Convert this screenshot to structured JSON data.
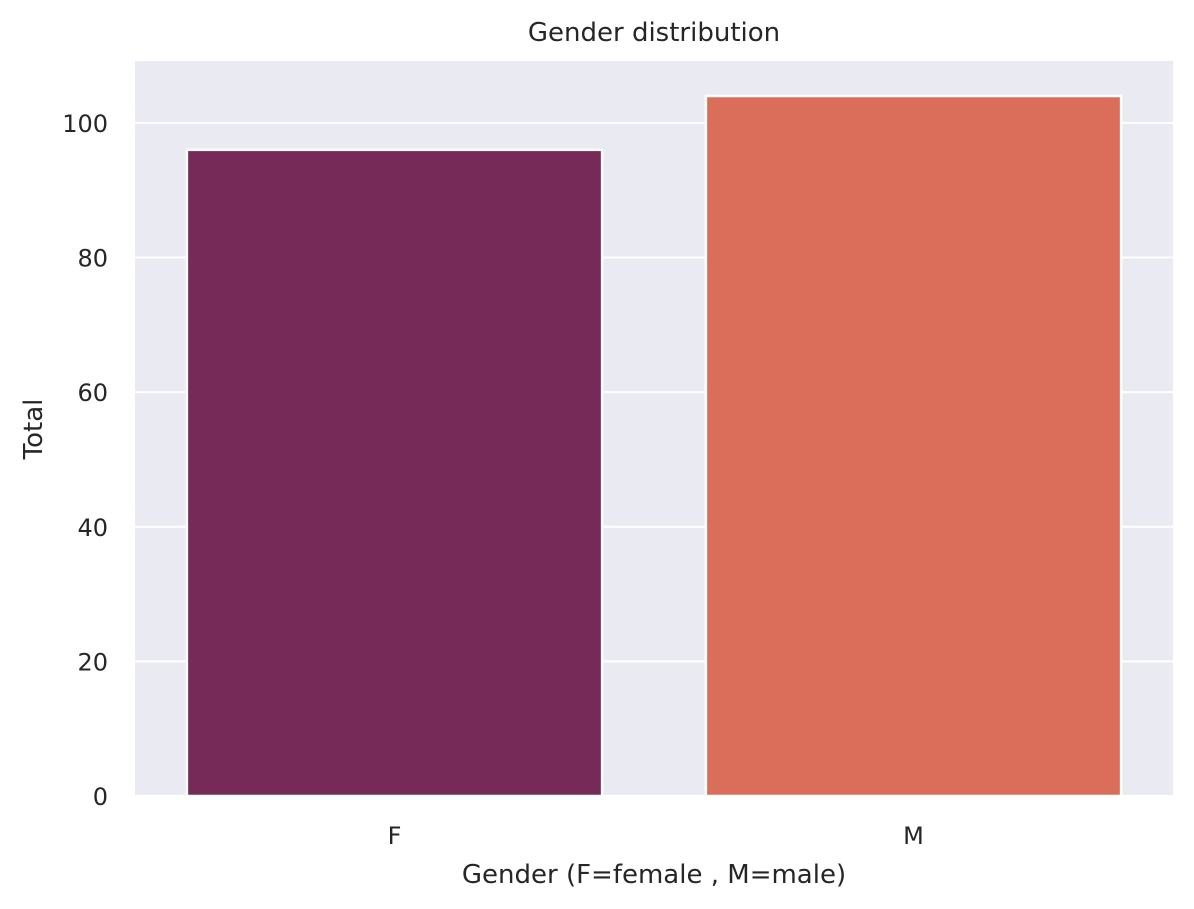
{
  "chart_data": {
    "type": "bar",
    "title": "Gender distribution",
    "xlabel": "Gender (F=female , M=male)",
    "ylabel": "Total",
    "categories": [
      "F",
      "M"
    ],
    "values": [
      96,
      104
    ],
    "colors": [
      "#762A57",
      "#DA6E5A"
    ],
    "ylim": [
      0,
      109.2
    ],
    "yticks": [
      0,
      20,
      40,
      60,
      80,
      100
    ],
    "grid": true,
    "background": "#EAEAF2",
    "legend": "none"
  }
}
